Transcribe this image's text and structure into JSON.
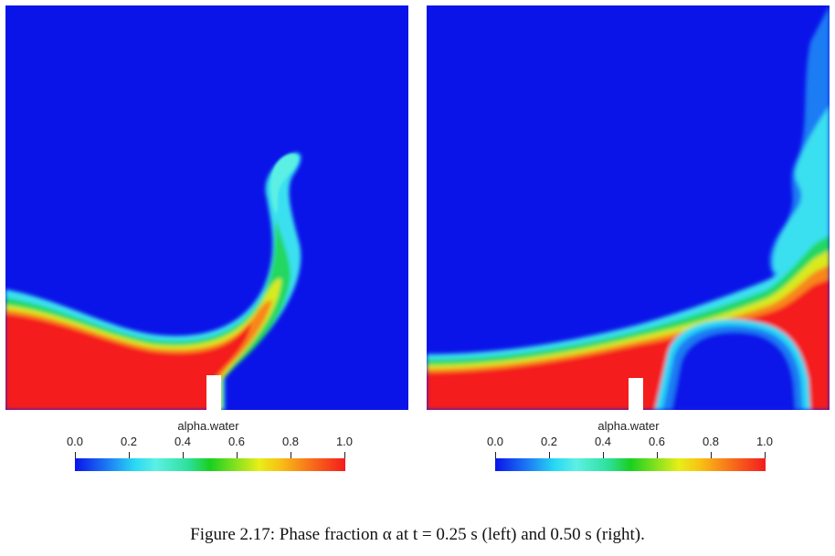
{
  "figure": {
    "caption": "Figure 2.17: Phase fraction α at t = 0.25 s (left) and 0.50 s (right)."
  },
  "colorbar": {
    "title": "alpha.water",
    "ticks": [
      "0.0",
      "0.2",
      "0.4",
      "0.6",
      "0.8",
      "1.0"
    ],
    "colormap": [
      "#0a14e8",
      "#28d8f4",
      "#18d020",
      "#e8ee18",
      "#f41c1c"
    ]
  },
  "panels": [
    {
      "time_s": 0.25,
      "position": "left"
    },
    {
      "time_s": 0.5,
      "position": "right"
    }
  ]
}
